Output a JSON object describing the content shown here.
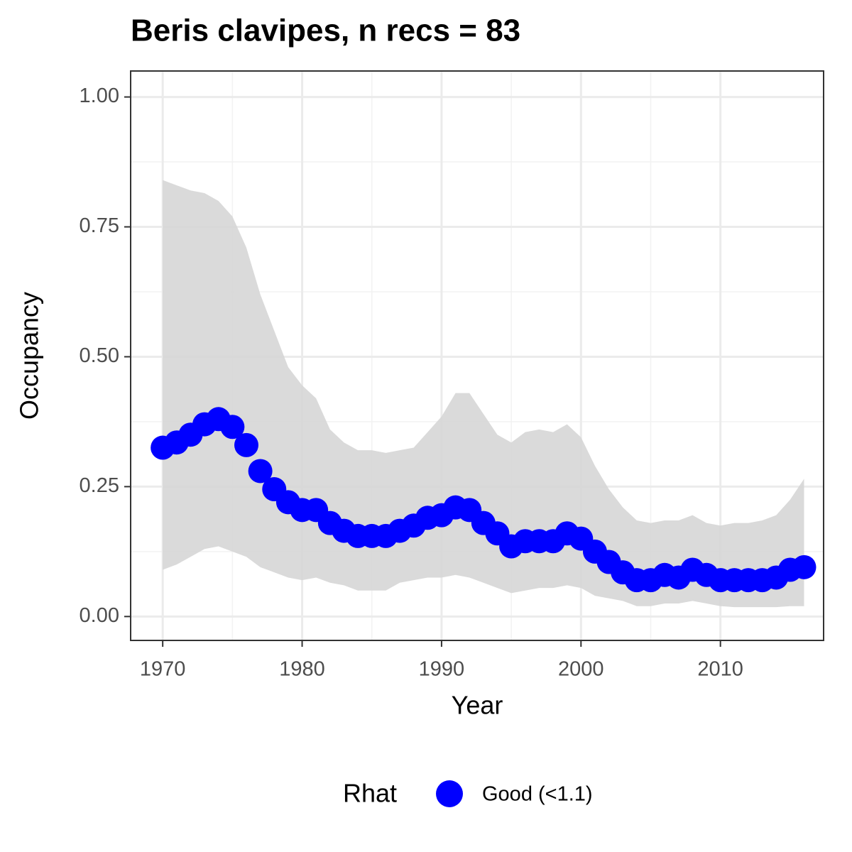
{
  "chart_data": {
    "type": "line",
    "title": "Beris clavipes, n recs = 83",
    "xlabel": "Year",
    "ylabel": "Occupancy",
    "x": [
      1970,
      1971,
      1972,
      1973,
      1974,
      1975,
      1976,
      1977,
      1978,
      1979,
      1980,
      1981,
      1982,
      1983,
      1984,
      1985,
      1986,
      1987,
      1988,
      1989,
      1990,
      1991,
      1992,
      1993,
      1994,
      1995,
      1996,
      1997,
      1998,
      1999,
      2000,
      2001,
      2002,
      2003,
      2004,
      2005,
      2006,
      2007,
      2008,
      2009,
      2010,
      2011,
      2012,
      2013,
      2014,
      2015,
      2016
    ],
    "series": [
      {
        "name": "Good (<1.1)",
        "color": "#0000ff",
        "values": [
          0.325,
          0.335,
          0.35,
          0.37,
          0.38,
          0.365,
          0.33,
          0.28,
          0.245,
          0.22,
          0.205,
          0.205,
          0.18,
          0.165,
          0.155,
          0.155,
          0.155,
          0.165,
          0.175,
          0.19,
          0.195,
          0.21,
          0.205,
          0.18,
          0.16,
          0.135,
          0.145,
          0.145,
          0.145,
          0.16,
          0.15,
          0.125,
          0.105,
          0.085,
          0.07,
          0.07,
          0.08,
          0.075,
          0.09,
          0.08,
          0.07,
          0.07,
          0.07,
          0.07,
          0.075,
          0.09,
          0.095
        ],
        "upper": [
          0.84,
          0.83,
          0.82,
          0.815,
          0.8,
          0.77,
          0.71,
          0.62,
          0.55,
          0.48,
          0.445,
          0.42,
          0.36,
          0.335,
          0.32,
          0.32,
          0.315,
          0.32,
          0.325,
          0.355,
          0.385,
          0.43,
          0.43,
          0.39,
          0.35,
          0.335,
          0.355,
          0.36,
          0.355,
          0.37,
          0.345,
          0.29,
          0.245,
          0.21,
          0.185,
          0.18,
          0.185,
          0.185,
          0.195,
          0.18,
          0.175,
          0.18,
          0.18,
          0.185,
          0.195,
          0.225,
          0.265
        ],
        "lower": [
          0.09,
          0.1,
          0.115,
          0.13,
          0.135,
          0.125,
          0.115,
          0.095,
          0.085,
          0.075,
          0.07,
          0.075,
          0.065,
          0.06,
          0.05,
          0.05,
          0.05,
          0.065,
          0.07,
          0.075,
          0.075,
          0.08,
          0.075,
          0.065,
          0.055,
          0.045,
          0.05,
          0.055,
          0.055,
          0.06,
          0.055,
          0.04,
          0.035,
          0.03,
          0.02,
          0.02,
          0.025,
          0.025,
          0.03,
          0.025,
          0.02,
          0.018,
          0.018,
          0.018,
          0.018,
          0.02,
          0.02
        ]
      }
    ],
    "band_color": "#d6d6d6",
    "legend_title": "Rhat",
    "legend": "bottom",
    "xlim": [
      1967.7,
      2017.4
    ],
    "xticks": [
      1970,
      1980,
      1990,
      2000,
      2010
    ],
    "ylim": [
      -0.046,
      1.05
    ],
    "yticks": [
      {
        "value": 0,
        "label": "0.00"
      },
      {
        "value": 0.25,
        "label": "0.25"
      },
      {
        "value": 0.5,
        "label": "0.50"
      },
      {
        "value": 0.75,
        "label": "0.75"
      },
      {
        "value": 1,
        "label": "1.00"
      }
    ],
    "grid": true,
    "minor_grid": true
  }
}
